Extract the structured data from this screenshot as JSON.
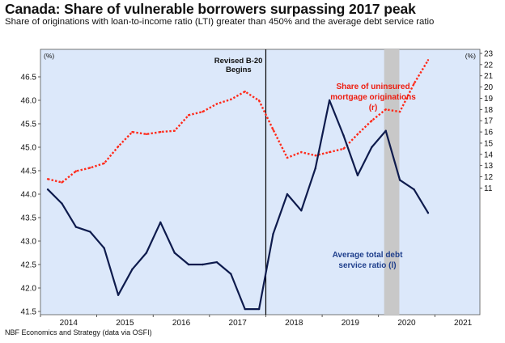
{
  "title": "Canada: Share of vulnerable borrowers surpassing 2017 peak",
  "subtitle": "Share of originations with loan-to-income ratio (LTI) greater than 450% and the average debt service ratio",
  "source": "NBF Economics and Strategy (data via OSFI)",
  "colors": {
    "plot_bg": "#dce8fa",
    "dsr_line": "#0e1b4d",
    "lti_line": "#ff2a1a",
    "shade": "#c8c8c8",
    "dsr_label": "#1f3f8c",
    "lti_label": "#ee1c0f"
  },
  "chart_data": {
    "type": "line",
    "left_axis": {
      "unit": "(%)",
      "ylim": [
        41.5,
        47.0
      ],
      "ticks": [
        "41.5",
        "42.0",
        "42.5",
        "43.0",
        "43.5",
        "44.0",
        "44.5",
        "45.0",
        "45.5",
        "46.0",
        "46.5"
      ]
    },
    "right_axis": {
      "unit": "(%)",
      "ylim": [
        0,
        23
      ],
      "ticks": [
        "11",
        "12",
        "13",
        "14",
        "15",
        "16",
        "17",
        "18",
        "19",
        "20",
        "21",
        "22",
        "23"
      ]
    },
    "x_axis": {
      "xlim": [
        2013.5,
        2021.3
      ],
      "ticks": [
        "2014",
        "2015",
        "2016",
        "2017",
        "2018",
        "2019",
        "2020",
        "2021"
      ]
    },
    "grid": false,
    "shaded_region": [
      2019.6,
      2019.87
    ],
    "vertical_line": {
      "x": 2017.5,
      "label_line1": "Revised B-20",
      "label_line2": "Begins"
    },
    "series": [
      {
        "name": "Average total debt service ratio (l)",
        "label_line1": "Average total debt",
        "label_line2": "service ratio (l)",
        "axis": "left",
        "style": "solid",
        "x": [
          2013.63,
          2013.88,
          2014.13,
          2014.38,
          2014.63,
          2014.88,
          2015.13,
          2015.38,
          2015.63,
          2015.88,
          2016.13,
          2016.38,
          2016.63,
          2016.88,
          2017.13,
          2017.38,
          2017.63,
          2017.88,
          2018.13,
          2018.38,
          2018.63,
          2018.88,
          2019.13,
          2019.38,
          2019.63,
          2019.88,
          2020.13,
          2020.38
        ],
        "values": [
          44.1,
          43.8,
          43.3,
          43.2,
          42.85,
          41.85,
          42.4,
          42.75,
          43.4,
          42.75,
          42.5,
          42.5,
          42.55,
          42.3,
          41.55,
          41.55,
          43.15,
          44.0,
          43.65,
          44.55,
          46.0,
          45.25,
          44.4,
          45.0,
          45.35,
          44.3,
          44.1,
          43.6
        ]
      },
      {
        "name": "Share of uninsured mortgage originations (r)",
        "label_line1": "Share of uninsured",
        "label_line2": "mortgage originations",
        "label_line3": "(r)",
        "axis": "right",
        "style": "dotted",
        "x": [
          2013.63,
          2013.88,
          2014.13,
          2014.38,
          2014.63,
          2014.88,
          2015.13,
          2015.38,
          2015.63,
          2015.88,
          2016.13,
          2016.38,
          2016.63,
          2016.88,
          2017.13,
          2017.38,
          2017.63,
          2017.88,
          2018.13,
          2018.38,
          2018.63,
          2018.88,
          2019.13,
          2019.38,
          2019.63,
          2019.88,
          2020.13,
          2020.38
        ],
        "values": [
          11.8,
          11.5,
          12.5,
          12.8,
          13.2,
          14.7,
          16.0,
          15.8,
          16.0,
          16.1,
          17.5,
          17.8,
          18.5,
          18.9,
          19.6,
          18.8,
          16.2,
          13.7,
          14.2,
          13.9,
          14.2,
          14.5,
          15.8,
          17.0,
          18.0,
          17.8,
          20.3,
          22.4
        ]
      }
    ]
  }
}
